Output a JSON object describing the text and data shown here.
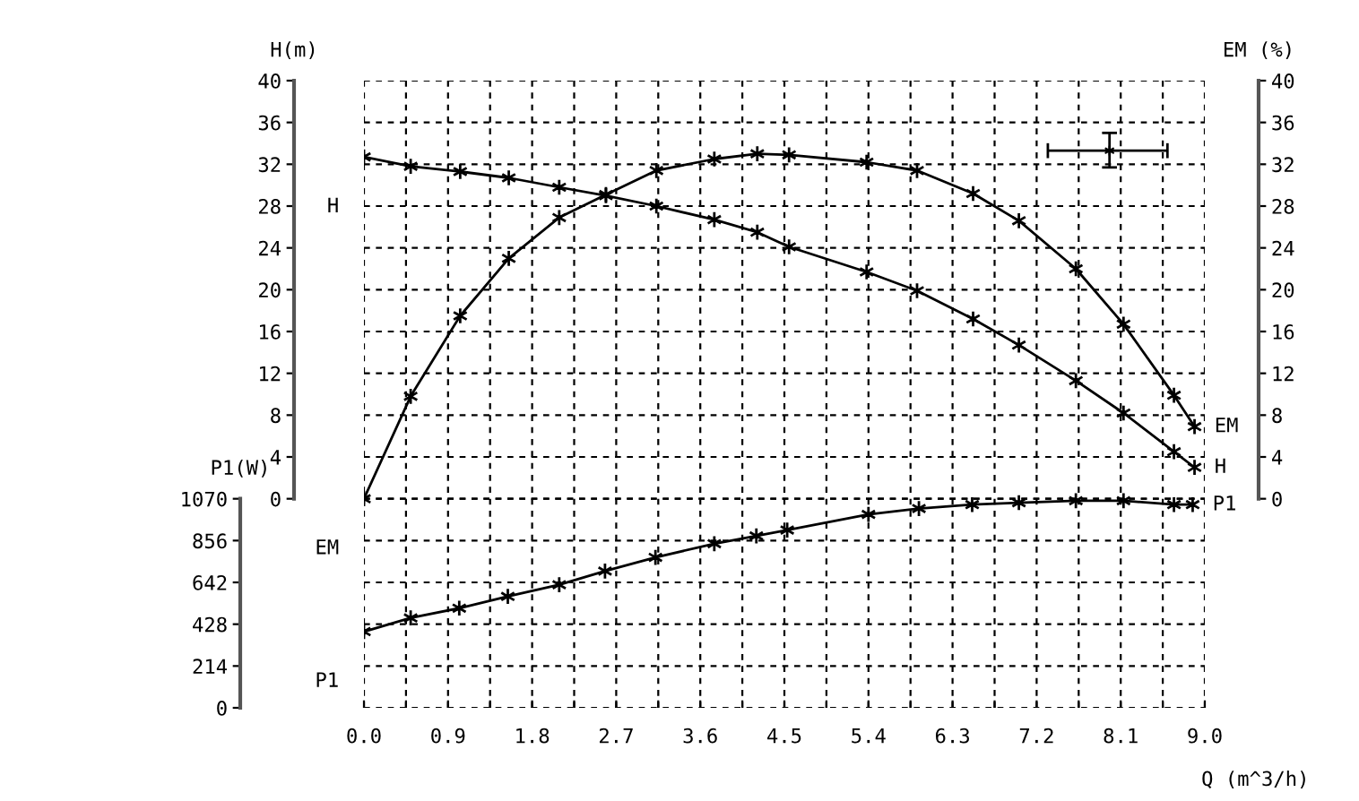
{
  "chart_data": {
    "type": "line",
    "xlabel": "Q (m^3/h)",
    "ylabel": "H(m)",
    "y2label": "EM (%)",
    "y3label": "P1(W)",
    "xlim": [
      0,
      9.0
    ],
    "xticks": [
      {
        "value": 0,
        "label": "0.0"
      },
      {
        "value": 0.45,
        "label": null
      },
      0.9,
      {
        "value": 1.35,
        "label": null
      },
      1.8,
      {
        "value": 2.25,
        "label": null
      },
      2.7,
      {
        "value": 3.15,
        "label": null
      },
      3.6,
      {
        "value": 4.05,
        "label": null
      },
      4.5,
      {
        "value": 4.95,
        "label": null
      },
      5.4,
      {
        "value": 5.85,
        "label": null
      },
      6.3,
      {
        "value": 6.75,
        "label": null
      },
      7.2,
      {
        "value": 7.65,
        "label": null
      },
      8.1,
      {
        "value": 8.55,
        "label": null
      },
      {
        "value": 9.0,
        "label": "9.0"
      }
    ],
    "ylim": [
      -20,
      40
    ],
    "yticks": [
      0,
      4,
      8,
      12,
      16,
      20,
      24,
      28,
      32,
      36,
      40
    ],
    "y2lim": [
      -20,
      40
    ],
    "y2ticks": [
      0,
      4,
      8,
      12,
      16,
      20,
      24,
      28,
      32,
      36,
      40
    ],
    "y3lim": [
      0,
      3210
    ],
    "y3ticks": [
      0,
      214,
      428,
      642,
      856,
      1070
    ],
    "grid": true,
    "legend": false,
    "marker": "cross",
    "line_style": "solid",
    "series": [
      {
        "name": "H",
        "color": "#000000",
        "axis": "y",
        "x": [
          0,
          0.5,
          1.03,
          1.55,
          2.09,
          2.59,
          3.13,
          3.75,
          4.21,
          4.55,
          5.38,
          5.92,
          6.52,
          7.01,
          7.62,
          8.13,
          8.67,
          8.89
        ],
        "values": [
          32.7,
          31.8,
          31.3,
          30.7,
          29.8,
          29.0,
          28.0,
          26.7,
          25.5,
          24.1,
          21.7,
          19.9,
          17.2,
          14.7,
          11.3,
          8.2,
          4.5,
          3.0
        ]
      },
      {
        "name": "EM",
        "color": "#000000",
        "axis": "y2",
        "x": [
          0,
          0.5,
          1.03,
          1.55,
          2.09,
          2.59,
          3.13,
          3.75,
          4.21,
          4.55,
          5.38,
          5.92,
          6.52,
          7.01,
          7.62,
          8.13,
          8.67,
          8.89
        ],
        "values": [
          0,
          9.8,
          17.5,
          23.0,
          26.9,
          29.1,
          31.4,
          32.5,
          33.0,
          32.9,
          32.2,
          31.4,
          29.2,
          26.6,
          22.0,
          16.7,
          9.9,
          6.9
        ]
      },
      {
        "name": "P1",
        "color": "#000000",
        "axis": "y3",
        "x": [
          0,
          0.5,
          1.02,
          1.54,
          2.09,
          2.58,
          3.12,
          3.75,
          4.2,
          4.53,
          5.4,
          5.94,
          6.51,
          7.01,
          7.62,
          8.13,
          8.67,
          8.87
        ],
        "values": [
          390,
          460,
          510,
          570,
          630,
          700,
          770,
          840,
          880,
          910,
          990,
          1020,
          1040,
          1050,
          1060,
          1060,
          1040,
          1040
        ]
      },
      {
        "type": "scatter",
        "marker": "cross",
        "color": "#000000",
        "axis": "y",
        "x": [
          7.98
        ],
        "values": [
          33.3
        ],
        "errors": [
          [
            31.7,
            35.0
          ]
        ],
        "xerrors": [
          [
            7.32,
            8.6
          ]
        ]
      }
    ]
  }
}
